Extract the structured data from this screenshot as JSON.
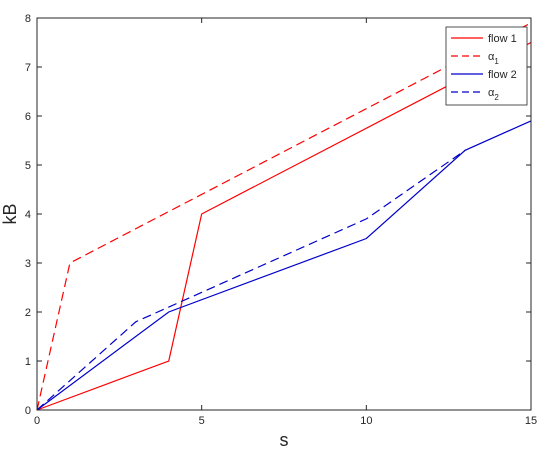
{
  "chart_data": {
    "type": "line",
    "xlabel": "s",
    "ylabel": "kB",
    "xlim": [
      0,
      15
    ],
    "ylim": [
      0,
      8
    ],
    "x_ticks": [
      0,
      5,
      10,
      15
    ],
    "y_ticks": [
      0,
      1,
      2,
      3,
      4,
      5,
      6,
      7,
      8
    ],
    "x_tick_labels": [
      "0",
      "5",
      "10",
      "15"
    ],
    "y_tick_labels": [
      "0",
      "1",
      "2",
      "3",
      "4",
      "5",
      "6",
      "7",
      "8"
    ],
    "grid": false,
    "legend_position": "top-right",
    "series": [
      {
        "name": "flow 1",
        "color": "#ff0000",
        "style": "solid",
        "x": [
          0,
          4,
          5,
          15
        ],
        "y": [
          0,
          1,
          4,
          7.5
        ]
      },
      {
        "name": "α",
        "name_subscript": "1",
        "color": "#ff0000",
        "style": "dashed",
        "x": [
          0,
          1,
          15
        ],
        "y": [
          0,
          3,
          7.9
        ]
      },
      {
        "name": "flow 2",
        "color": "#0000cc",
        "style": "solid",
        "x": [
          0,
          4,
          10,
          13,
          15
        ],
        "y": [
          0,
          2,
          3.5,
          5.3,
          5.9
        ]
      },
      {
        "name": "α",
        "name_subscript": "2",
        "color": "#0000cc",
        "style": "dashed",
        "x": [
          0,
          3,
          10,
          13
        ],
        "y": [
          0,
          1.8,
          3.9,
          5.3
        ]
      }
    ]
  }
}
